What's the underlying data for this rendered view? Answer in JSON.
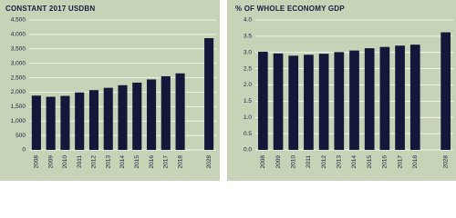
{
  "chart_data": [
    {
      "type": "bar",
      "title": "CONSTANT 2017 USDBN",
      "categories": [
        "2008",
        "2009",
        "2010",
        "2011",
        "2012",
        "2013",
        "2014",
        "2015",
        "2016",
        "2017",
        "2018",
        null,
        "2028"
      ],
      "values": [
        1880,
        1840,
        1870,
        1990,
        2070,
        2150,
        2240,
        2330,
        2440,
        2550,
        2650,
        null,
        3870
      ],
      "color": "#14163a",
      "ylim": [
        0,
        4500
      ],
      "yticks": [
        0,
        500,
        {
          "value": 1000,
          "label": "1,000"
        },
        {
          "value": 1500,
          "label": "1,500"
        },
        {
          "value": 2000,
          "label": "2,000"
        },
        {
          "value": 2500,
          "label": "2,500"
        },
        {
          "value": 3000,
          "label": "3,000"
        },
        {
          "value": 3500,
          "label": "3,500"
        },
        {
          "value": 4000,
          "label": "4,000"
        },
        {
          "value": 4500,
          "label": "4,500"
        }
      ],
      "grid": true
    },
    {
      "type": "bar",
      "title": "% OF WHOLE ECONOMY GDP",
      "categories": [
        "2008",
        "2009",
        "2010",
        "2011",
        "2012",
        "2013",
        "2014",
        "2015",
        "2016",
        "2017",
        "2018",
        null,
        "2028"
      ],
      "values": [
        3.02,
        2.97,
        2.9,
        2.93,
        2.96,
        3.01,
        3.06,
        3.13,
        3.17,
        3.21,
        3.24,
        null,
        3.62
      ],
      "color": "#14163a",
      "ylim": [
        0,
        4
      ],
      "yticks": [
        {
          "value": 0,
          "label": "0.0"
        },
        0.5,
        {
          "value": 1,
          "label": "1.0"
        },
        1.5,
        {
          "value": 2,
          "label": "2.0"
        },
        2.5,
        {
          "value": 3,
          "label": "3.0"
        },
        3.5,
        {
          "value": 4,
          "label": "4.0"
        }
      ],
      "grid": true
    }
  ]
}
